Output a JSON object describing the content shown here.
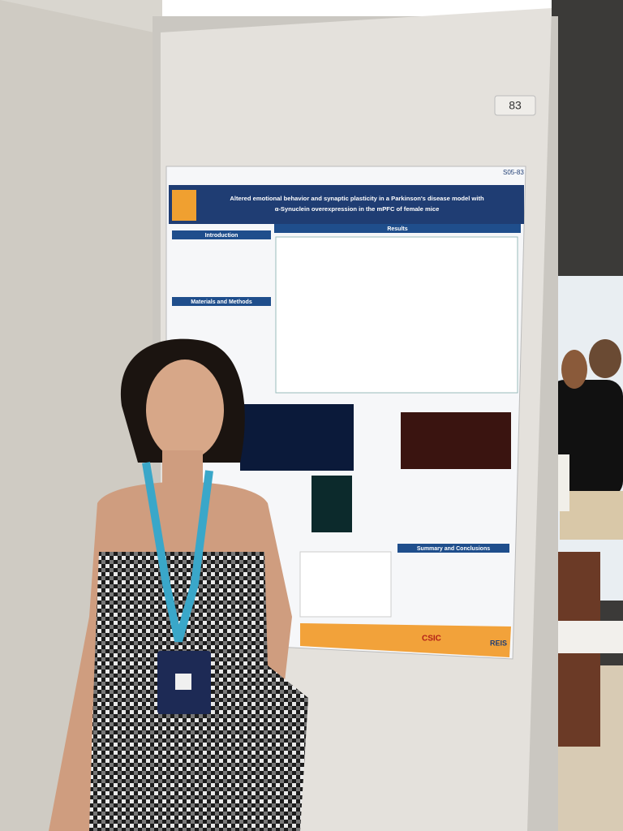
{
  "board": {
    "number": "83"
  },
  "poster": {
    "code": "S05-83",
    "title_line_1": "Altered emotional behavior and synaptic plasticity in a Parkinson's disease model with",
    "title_line_2": "α-Synuclein overexpression in the mPFC of female mice",
    "sections": [
      "Introduction",
      "Results",
      "Materials and Methods",
      "Summary and Conclusions"
    ],
    "logos": [
      "CSIC",
      "REIS"
    ]
  }
}
